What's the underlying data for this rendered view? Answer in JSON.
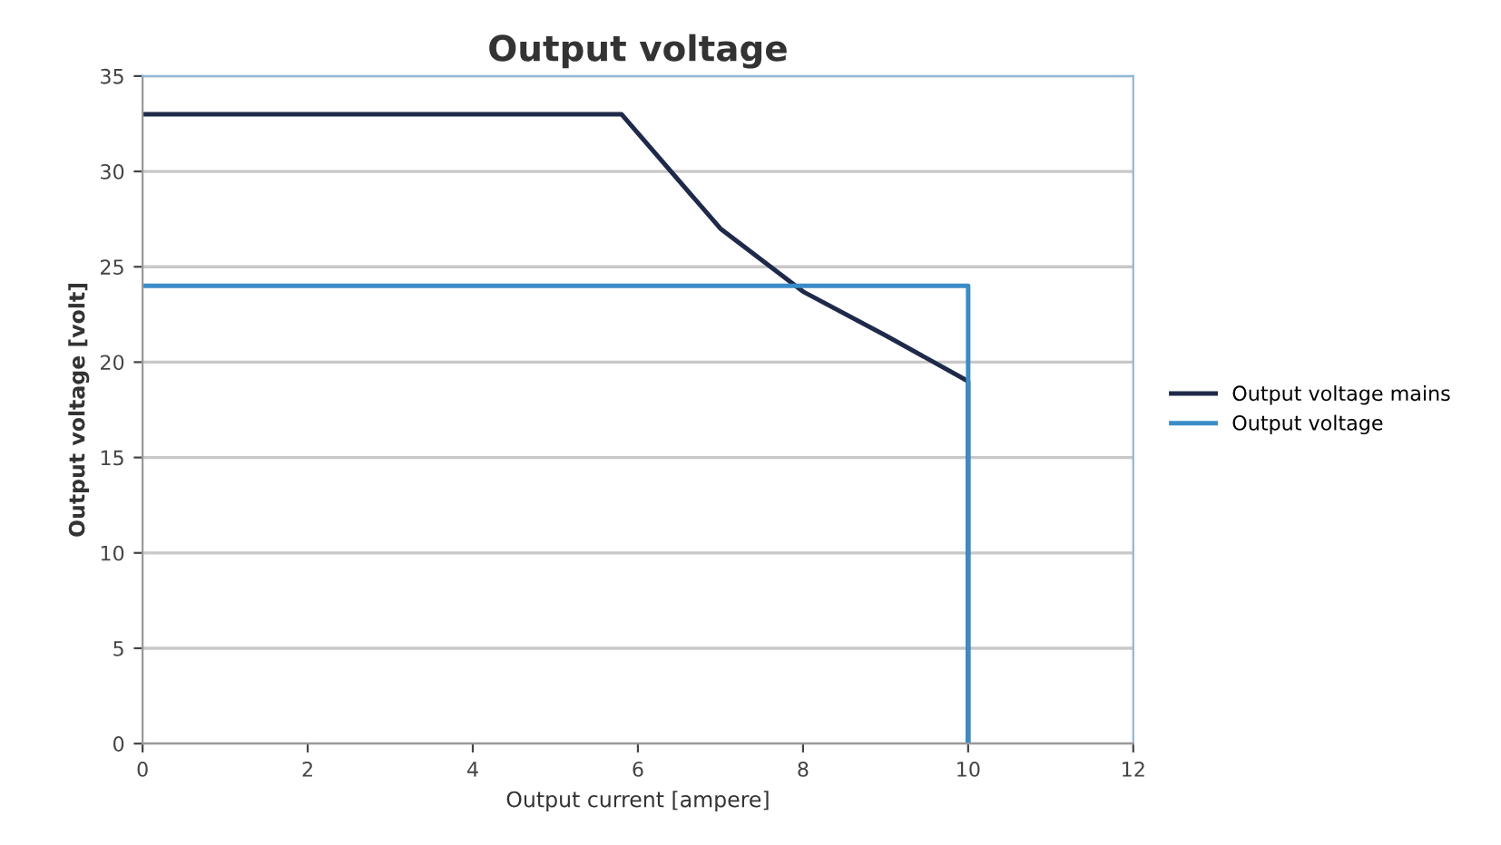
{
  "chart_data": {
    "type": "line",
    "title": "Output voltage",
    "xlabel": "Output current [ampere]",
    "ylabel": "Output voltage [volt]",
    "series": [
      {
        "name": "Output voltage mains",
        "color": "#1f2a4a",
        "x": [
          0,
          5.8,
          7,
          8,
          9,
          10,
          10
        ],
        "values": [
          33,
          33,
          27,
          23.7,
          21.4,
          19,
          0
        ]
      },
      {
        "name": "Output voltage",
        "color": "#3a8cc8",
        "x": [
          0,
          10,
          10
        ],
        "values": [
          24,
          24,
          0
        ]
      }
    ],
    "xlim": [
      0,
      12
    ],
    "xticks": [
      0,
      2,
      4,
      6,
      8,
      10,
      12
    ],
    "ylim": [
      0,
      35
    ],
    "yticks": [
      0,
      5,
      10,
      15,
      20,
      25,
      30,
      35
    ],
    "grid": "y",
    "legend": "right",
    "marker": "none",
    "line_style": "solid"
  }
}
